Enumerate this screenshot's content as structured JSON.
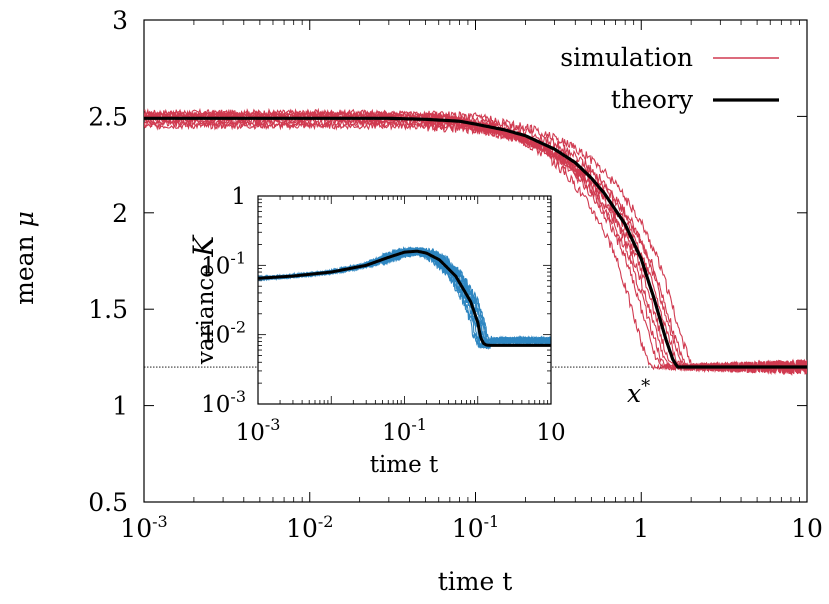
{
  "chart_data": [
    {
      "type": "line",
      "xlabel": "time t",
      "ylabel_text": "mean",
      "ylabel_symbol": "μ",
      "xscale": "log",
      "xlim": [
        0.001,
        10
      ],
      "ylim": [
        0.5,
        3
      ],
      "x_ticks": [
        {
          "value": 0.001,
          "base": "10",
          "exp": "-3"
        },
        {
          "value": 0.01,
          "base": "10",
          "exp": "-2"
        },
        {
          "value": 0.1,
          "base": "10",
          "exp": "-1"
        },
        {
          "value": 1,
          "base": "1",
          "exp": ""
        },
        {
          "value": 10,
          "base": "10",
          "exp": ""
        }
      ],
      "y_ticks": [
        {
          "value": 0.5,
          "label": "0.5"
        },
        {
          "value": 1,
          "label": "1"
        },
        {
          "value": 1.5,
          "label": "1.5"
        },
        {
          "value": 2,
          "label": "2"
        },
        {
          "value": 2.5,
          "label": "2.5"
        },
        {
          "value": 3,
          "label": "3"
        }
      ],
      "reference_line": {
        "y": 1.2,
        "label_base": "x",
        "label_sup": "*"
      },
      "legend": {
        "position": "top-right",
        "entries": [
          "simulation",
          "theory"
        ]
      },
      "colors": {
        "simulation": "#d03a50",
        "theory": "#000000",
        "reference": "#000000"
      },
      "series": [
        {
          "name": "theory",
          "x": [
            0.001,
            0.01,
            0.03,
            0.05,
            0.08,
            0.1,
            0.15,
            0.2,
            0.3,
            0.4,
            0.5,
            0.6,
            0.8,
            1.0,
            1.2,
            1.4,
            1.55,
            1.65,
            1.8,
            3,
            10
          ],
          "values": [
            2.49,
            2.49,
            2.49,
            2.485,
            2.475,
            2.46,
            2.43,
            2.4,
            2.33,
            2.26,
            2.18,
            2.1,
            1.94,
            1.76,
            1.55,
            1.35,
            1.24,
            1.2,
            1.2,
            1.2,
            1.2
          ]
        },
        {
          "name": "simulation",
          "description_count": 10,
          "values_pattern": "10 noisy trajectories plateauing near 2.45-2.52, dropping between t≈0.05 and t≈2, then fluctuating around 1.2",
          "plateau_values": [
            2.52,
            2.51,
            2.5,
            2.49,
            2.48,
            2.47,
            2.46,
            2.5,
            2.45,
            2.51
          ],
          "time_shift": [
            0.7,
            0.8,
            0.85,
            0.9,
            0.95,
            1.0,
            1.05,
            1.1,
            1.15,
            1.25
          ]
        }
      ]
    },
    {
      "type": "line",
      "role": "inset",
      "xlabel": "time t",
      "ylabel_text": "variance",
      "ylabel_symbol": "K",
      "xscale": "log",
      "yscale": "log",
      "xlim": [
        0.001,
        10
      ],
      "ylim": [
        0.001,
        1
      ],
      "x_ticks": [
        {
          "value": 0.001,
          "base": "10",
          "exp": "-3"
        },
        {
          "value": 0.1,
          "base": "10",
          "exp": "-1"
        },
        {
          "value": 10,
          "base": "10",
          "exp": ""
        }
      ],
      "y_ticks": [
        {
          "value": 0.001,
          "base": "10",
          "exp": "-3"
        },
        {
          "value": 0.01,
          "base": "10",
          "exp": "-2"
        },
        {
          "value": 0.1,
          "base": "10",
          "exp": "-1"
        },
        {
          "value": 1,
          "base": "1",
          "exp": ""
        }
      ],
      "colors": {
        "simulation": "#2e86c1",
        "theory": "#000000"
      },
      "series": [
        {
          "name": "theory",
          "x": [
            0.001,
            0.003,
            0.01,
            0.03,
            0.06,
            0.1,
            0.15,
            0.2,
            0.3,
            0.5,
            0.8,
            1.0,
            1.1,
            1.2,
            1.3,
            1.5,
            10
          ],
          "values": [
            0.065,
            0.07,
            0.08,
            0.1,
            0.13,
            0.155,
            0.16,
            0.15,
            0.12,
            0.07,
            0.03,
            0.015,
            0.009,
            0.0075,
            0.0071,
            0.007,
            0.007
          ]
        },
        {
          "name": "simulation",
          "description_count": 10,
          "values_pattern": "10 noisy trajectories following theory, fluctuating around 0.008 for t > 1.3"
        }
      ]
    }
  ]
}
